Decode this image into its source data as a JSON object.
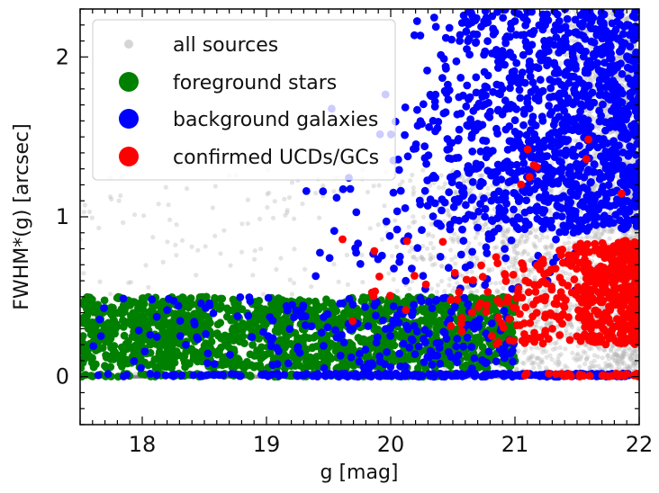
{
  "chart_data": {
    "type": "scatter",
    "title": "",
    "xlabel": "g [mag]",
    "ylabel": "FWHM*(g) [arcsec]",
    "xlim": [
      17.5,
      22.0
    ],
    "ylim": [
      -0.3,
      2.3
    ],
    "x_ticks": [
      18,
      19,
      20,
      21,
      22
    ],
    "y_ticks": [
      0,
      1,
      2
    ],
    "legend_position": "top-left",
    "series": [
      {
        "name": "all sources",
        "color": "#b3b3b3",
        "marker": "small-circle-transparent",
        "clusters": [
          {
            "x_range": [
              17.5,
              22.0
            ],
            "y_range": [
              0.0,
              0.02
            ],
            "count": 200,
            "density_trend": "uniform"
          },
          {
            "x_range": [
              17.5,
              20.2
            ],
            "y_range": [
              0.3,
              1.4
            ],
            "count": 160,
            "density_trend": "uniform"
          },
          {
            "x_range": [
              20.0,
              21.3
            ],
            "y_range": [
              0.0,
              1.3
            ],
            "count": 900,
            "density_trend": "increasing-with-x"
          },
          {
            "x_range": [
              21.2,
              22.0
            ],
            "y_range": [
              0.0,
              2.3
            ],
            "count": 2200,
            "density_trend": "increasing-with-x"
          }
        ]
      },
      {
        "name": "foreground stars",
        "color": "#008000",
        "marker": "circle",
        "clusters": [
          {
            "x_range": [
              17.5,
              21.0
            ],
            "y_range": [
              0.05,
              0.5
            ],
            "count": 1500,
            "density_trend": "uniform"
          },
          {
            "x_range": [
              17.5,
              20.6
            ],
            "y_range": [
              0.0,
              0.02
            ],
            "count": 120,
            "density_trend": "uniform"
          }
        ]
      },
      {
        "name": "background galaxies",
        "color": "#0000ff",
        "marker": "circle",
        "clusters": [
          {
            "x_range": [
              20.05,
              22.0
            ],
            "y_range": [
              0.9,
              2.3
            ],
            "count": 1100,
            "density_trend": "increasing-with-x"
          },
          {
            "x_range": [
              19.2,
              21.5
            ],
            "y_range": [
              0.5,
              1.8
            ],
            "count": 160,
            "density_trend": "increasing-with-x"
          },
          {
            "x_range": [
              17.5,
              21.0
            ],
            "y_range": [
              0.05,
              0.5
            ],
            "count": 220,
            "density_trend": "increasing-with-x"
          },
          {
            "x_range": [
              17.5,
              22.0
            ],
            "y_range": [
              0.0,
              0.02
            ],
            "count": 240,
            "density_trend": "increasing-with-x"
          }
        ]
      },
      {
        "name": "confirmed UCDs/GCs",
        "color": "#ff0000",
        "marker": "circle",
        "clusters": [
          {
            "x_range": [
              21.3,
              22.0
            ],
            "y_range": [
              0.2,
              0.85
            ],
            "count": 420,
            "density_trend": "increasing-with-x"
          },
          {
            "x_range": [
              20.5,
              21.4
            ],
            "y_range": [
              0.2,
              0.75
            ],
            "count": 110,
            "density_trend": "increasing-with-x"
          },
          {
            "x_range": [
              19.6,
              20.6
            ],
            "y_range": [
              0.3,
              0.9
            ],
            "count": 18,
            "density_trend": "uniform"
          },
          {
            "x_range": [
              21.0,
              22.0
            ],
            "y_range": [
              1.1,
              1.5
            ],
            "count": 8,
            "density_trend": "uniform"
          },
          {
            "x_range": [
              21.0,
              22.0
            ],
            "y_range": [
              0.0,
              0.02
            ],
            "count": 30,
            "density_trend": "increasing-with-x"
          }
        ]
      }
    ],
    "reference_line": {
      "y": 0,
      "color": "#808080"
    }
  }
}
